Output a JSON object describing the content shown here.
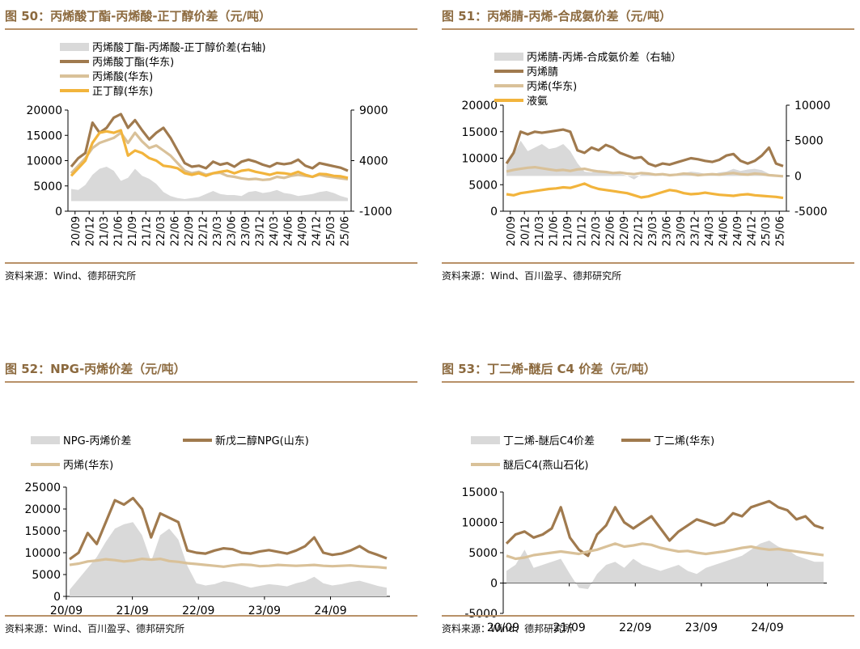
{
  "panels": [
    {
      "title": "图 50：丙烯酸丁酯-丙烯酸-正丁醇价差（元/吨）",
      "source": "资料来源：Wind、德邦研究所",
      "chart_data": {
        "type": "line",
        "legend_placement": "top",
        "x_ticks": [
          "20/09",
          "20/12",
          "21/03",
          "21/06",
          "21/09",
          "21/12",
          "22/03",
          "22/06",
          "22/09",
          "22/12",
          "23/03",
          "23/06",
          "23/09",
          "23/12",
          "24/03",
          "24/06",
          "24/09",
          "24/12",
          "25/03",
          "25/06"
        ],
        "y_left": {
          "min": 0,
          "max": 20000,
          "ticks": [
            0,
            5000,
            10000,
            15000,
            20000
          ]
        },
        "y_right": {
          "min": -1000,
          "max": 9000,
          "ticks": [
            -1000,
            4000,
            9000
          ]
        },
        "series": [
          {
            "name": "丙烯酸丁酯-丙烯酸-正丁醇价差(右轴)",
            "kind": "area",
            "axis": "right",
            "color": "#d9d9d9",
            "values": [
              1200,
              1100,
              1600,
              2600,
              3200,
              3400,
              3000,
              2000,
              2300,
              3200,
              2500,
              2200,
              1700,
              900,
              500,
              300,
              200,
              300,
              400,
              700,
              1000,
              700,
              600,
              600,
              500,
              900,
              1000,
              800,
              900,
              1100,
              800,
              700,
              500,
              600,
              700,
              900,
              1000,
              800,
              500,
              300
            ]
          },
          {
            "name": "丙烯酸丁酯(华东)",
            "kind": "line",
            "axis": "left",
            "color": "#a07a4e",
            "values": [
              8800,
              10500,
              11500,
              17500,
              15500,
              16500,
              18500,
              19200,
              16500,
              18000,
              16000,
              14200,
              15500,
              16500,
              14500,
              12000,
              9500,
              8800,
              9000,
              8500,
              9800,
              9200,
              9500,
              8800,
              9800,
              10200,
              9800,
              9200,
              8800,
              9500,
              9300,
              9500,
              10200,
              9000,
              8500,
              9500,
              9200,
              8900,
              8600,
              8000
            ]
          },
          {
            "name": "丙烯酸(华东)",
            "kind": "line",
            "axis": "left",
            "color": "#d9c199",
            "values": [
              7500,
              9000,
              10500,
              12500,
              13500,
              14000,
              14500,
              15500,
              13500,
              15500,
              13800,
              12500,
              13000,
              12000,
              11000,
              9500,
              8000,
              7500,
              7800,
              7200,
              7500,
              7600,
              7000,
              6800,
              6500,
              6300,
              6400,
              6200,
              6300,
              6800,
              6600,
              7000,
              7200,
              7000,
              6800,
              7200,
              6900,
              6700,
              6500,
              6300
            ]
          },
          {
            "name": "正丁醇(华东)",
            "kind": "line",
            "axis": "left",
            "color": "#f2b43c",
            "values": [
              7000,
              8500,
              10000,
              13500,
              15500,
              15800,
              15500,
              16000,
              11000,
              12000,
              11500,
              10500,
              10000,
              9000,
              8800,
              8500,
              7500,
              7200,
              7500,
              7000,
              7500,
              7800,
              8000,
              7500,
              8000,
              8200,
              7800,
              7500,
              7200,
              7600,
              7500,
              7300,
              7800,
              7200,
              6800,
              7400,
              7300,
              7000,
              6900,
              6600
            ]
          }
        ]
      }
    },
    {
      "title": "图 51：丙烯腈-丙烯-合成氨价差（元/吨）",
      "source": "资料来源：Wind、百川盈孚、德邦研究所",
      "chart_data": {
        "type": "line",
        "legend_placement": "top",
        "x_ticks": [
          "20/09",
          "20/12",
          "21/03",
          "21/06",
          "21/09",
          "21/12",
          "22/03",
          "22/06",
          "22/09",
          "22/12",
          "23/03",
          "23/06",
          "23/09",
          "23/12",
          "24/03",
          "24/06",
          "24/09",
          "24/12",
          "25/03",
          "25/06"
        ],
        "y_left": {
          "min": 0,
          "max": 20000,
          "ticks": [
            0,
            5000,
            10000,
            15000,
            20000
          ]
        },
        "y_right": {
          "min": -5000,
          "max": 10000,
          "ticks": [
            -5000,
            0,
            5000,
            10000
          ]
        },
        "series": [
          {
            "name": "丙烯腈-丙烯-合成氨价差（右轴）",
            "kind": "area",
            "axis": "right",
            "color": "#d9d9d9",
            "values": [
              1500,
              3000,
              5000,
              3500,
              4000,
              4500,
              3800,
              4000,
              4500,
              3500,
              1800,
              600,
              500,
              800,
              700,
              400,
              300,
              0,
              -500,
              200,
              500,
              300,
              0,
              200,
              300,
              400,
              600,
              500,
              300,
              200,
              500,
              600,
              1000,
              700,
              900,
              1000,
              800,
              300,
              200,
              0
            ]
          },
          {
            "name": "丙烯腈",
            "kind": "line",
            "axis": "left",
            "color": "#a07a4e",
            "values": [
              9000,
              11000,
              15000,
              14500,
              15000,
              14800,
              15000,
              15200,
              15400,
              15000,
              11500,
              11000,
              12000,
              11500,
              12500,
              12000,
              11000,
              10500,
              10000,
              10200,
              9000,
              8500,
              9000,
              8800,
              9200,
              9600,
              10000,
              9800,
              9500,
              9300,
              9700,
              10500,
              10800,
              9500,
              9000,
              9500,
              10500,
              12000,
              9000,
              8500
            ]
          },
          {
            "name": "丙烯(华东)",
            "kind": "line",
            "axis": "left",
            "color": "#d9c199",
            "values": [
              7500,
              7800,
              8000,
              8200,
              8300,
              8100,
              7900,
              7700,
              7800,
              7600,
              7900,
              8000,
              7700,
              7500,
              7400,
              7200,
              7300,
              7100,
              7000,
              7200,
              7100,
              6900,
              7000,
              6800,
              6900,
              7100,
              7000,
              6800,
              6900,
              7000,
              6900,
              7100,
              7200,
              7000,
              6900,
              7100,
              7000,
              6800,
              6700,
              6600
            ]
          },
          {
            "name": "液氨",
            "kind": "line",
            "axis": "left",
            "color": "#f2b43c",
            "values": [
              3200,
              3000,
              3400,
              3600,
              3800,
              4000,
              4200,
              4300,
              4500,
              4400,
              4800,
              5200,
              4600,
              4200,
              4000,
              3800,
              3600,
              3400,
              3000,
              2600,
              2800,
              3200,
              3600,
              4000,
              3800,
              3400,
              3200,
              3300,
              3500,
              3300,
              3100,
              3000,
              2900,
              3100,
              3200,
              3000,
              2900,
              2800,
              2700,
              2500
            ]
          }
        ]
      }
    },
    {
      "title": "图 52：NPG-丙烯价差（元/吨）",
      "source": "资料来源：Wind、百川盈孚、德邦研究所",
      "chart_data": {
        "type": "line",
        "legend_placement": "top",
        "x_ticks": [
          "20/09",
          "21/09",
          "22/09",
          "23/09",
          "24/09"
        ],
        "y_left": {
          "min": 0,
          "max": 25000,
          "ticks": [
            0,
            5000,
            10000,
            15000,
            20000,
            25000
          ]
        },
        "series": [
          {
            "name": "NPG-丙烯价差",
            "kind": "area",
            "axis": "left",
            "color": "#d9d9d9",
            "values": [
              1500,
              4000,
              6500,
              9000,
              12500,
              15500,
              16500,
              17000,
              14000,
              8000,
              14000,
              15500,
              13000,
              7000,
              3000,
              2500,
              2800,
              3500,
              3200,
              2600,
              2000,
              2400,
              2800,
              2600,
              2300,
              3000,
              3500,
              4500,
              3000,
              2500,
              2800,
              3300,
              3600,
              3000,
              2400,
              2000
            ]
          },
          {
            "name": "新戊二醇NPG(山东)",
            "kind": "line",
            "axis": "left",
            "color": "#a07a4e",
            "values": [
              8500,
              10000,
              14500,
              12000,
              17000,
              22000,
              21000,
              22500,
              20000,
              13500,
              19000,
              18000,
              17000,
              10500,
              10000,
              9800,
              10500,
              11000,
              10800,
              10000,
              9800,
              10300,
              10600,
              10200,
              9800,
              10500,
              11500,
              13500,
              10000,
              9500,
              9800,
              10500,
              11500,
              10200,
              9500,
              8700
            ]
          },
          {
            "name": "丙烯(华东)",
            "kind": "line",
            "axis": "left",
            "color": "#d9c199",
            "values": [
              7200,
              7500,
              8000,
              8200,
              8500,
              8300,
              8000,
              8200,
              8600,
              8400,
              8600,
              8100,
              7900,
              7600,
              7400,
              7200,
              7000,
              6800,
              7100,
              7300,
              7200,
              6900,
              7000,
              7200,
              7100,
              7000,
              7100,
              7200,
              7000,
              6900,
              7000,
              7100,
              6900,
              6800,
              6700,
              6500
            ]
          }
        ]
      }
    },
    {
      "title": "图 53：丁二烯-醚后 C4 价差（元/吨）",
      "source": "资料来源：Wind、德邦研究所",
      "chart_data": {
        "type": "line",
        "legend_placement": "top",
        "x_ticks": [
          "20/09",
          "21/09",
          "22/09",
          "23/09",
          "24/09"
        ],
        "y_left": {
          "min": -5000,
          "max": 15000,
          "ticks": [
            -5000,
            0,
            5000,
            10000,
            15000
          ]
        },
        "series": [
          {
            "name": "丁二烯-醚后C4价差",
            "kind": "area",
            "axis": "left",
            "color": "#d9d9d9",
            "values": [
              2000,
              3000,
              5500,
              2500,
              3000,
              3500,
              4000,
              1500,
              -800,
              -1000,
              1500,
              3000,
              3500,
              2500,
              4000,
              3000,
              2500,
              2000,
              2500,
              3000,
              2000,
              1500,
              2500,
              3000,
              3500,
              4000,
              4500,
              5500,
              6500,
              7000,
              6000,
              5500,
              4500,
              4000,
              3500,
              3500
            ]
          },
          {
            "name": "丁二烯(华东)",
            "kind": "line",
            "axis": "left",
            "color": "#a07a4e",
            "values": [
              6500,
              8000,
              8500,
              7500,
              8000,
              9000,
              12500,
              7500,
              5500,
              4500,
              8000,
              9500,
              12500,
              10000,
              9000,
              10000,
              11000,
              9000,
              7000,
              8500,
              9500,
              10500,
              10000,
              9500,
              10000,
              11500,
              11000,
              12500,
              13000,
              13500,
              12500,
              12000,
              10500,
              11000,
              9500,
              9000
            ]
          },
          {
            "name": "醚后C4(燕山石化)",
            "kind": "line",
            "axis": "left",
            "color": "#d9c199",
            "values": [
              4500,
              4000,
              4200,
              4600,
              4800,
              5000,
              5200,
              5000,
              4800,
              5200,
              5500,
              6000,
              6500,
              6000,
              6200,
              6500,
              6300,
              5800,
              5500,
              5200,
              5300,
              5000,
              4800,
              5000,
              5200,
              5500,
              5800,
              6000,
              5700,
              5500,
              5600,
              5400,
              5200,
              5000,
              4800,
              4600
            ]
          }
        ]
      }
    }
  ]
}
